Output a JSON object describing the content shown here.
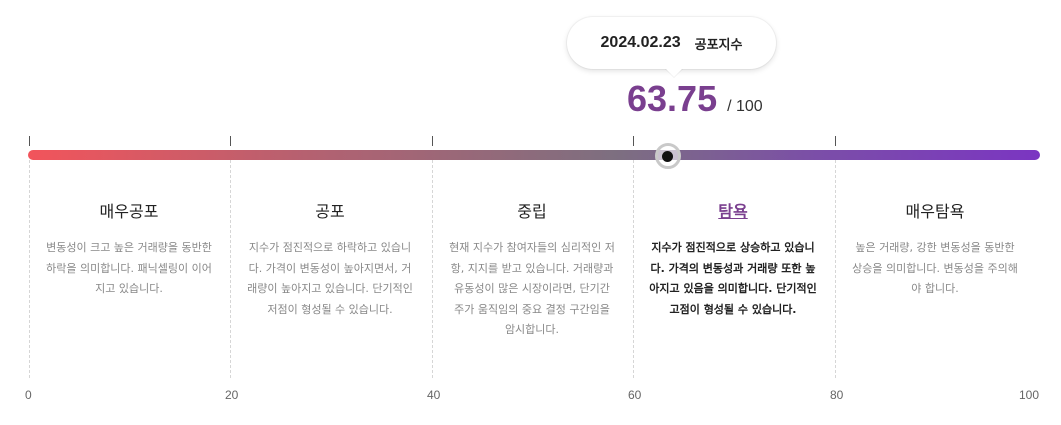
{
  "tooltip": {
    "date": "2024.02.23",
    "label": "공포지수"
  },
  "score": {
    "value": "63.75",
    "max": "/ 100",
    "fraction": 0.6375
  },
  "gradient": {
    "start": "#f2545b",
    "end": "#7b35c2",
    "accent": "#7a3f8f"
  },
  "zones": [
    {
      "title": "매우공포",
      "desc": "변동성이 크고 높은 거래량을 동반한 하락을 의미합니다. 패닉셀링이 이어지고 있습니다.",
      "active": false
    },
    {
      "title": "공포",
      "desc": "지수가 점진적으로 하락하고 있습니다. 가격이 변동성이 높아지면서, 거래량이 높아지고 있습니다. 단기적인 저점이 형성될 수 있습니다.",
      "active": false
    },
    {
      "title": "중립",
      "desc": "현재 지수가 참여자들의 심리적인 저항, 지지를 받고 있습니다. 거래량과 유동성이 많은 시장이라면, 단기간 주가 움직임의 중요 결정 구간임을 암시합니다.",
      "active": false
    },
    {
      "title": "탐욕",
      "desc": "지수가 점진적으로 상승하고 있습니다. 가격의 변동성과 거래량 또한 높아지고 있음을 의미합니다. 단기적인 고점이 형성될 수 있습니다.",
      "active": true
    },
    {
      "title": "매우탐욕",
      "desc": "높은 거래량, 강한 변동성을 동반한 상승을 의미합니다. 변동성을 주의해야 합니다.",
      "active": false
    }
  ],
  "axis": [
    "0",
    "20",
    "40",
    "60",
    "80",
    "100"
  ]
}
